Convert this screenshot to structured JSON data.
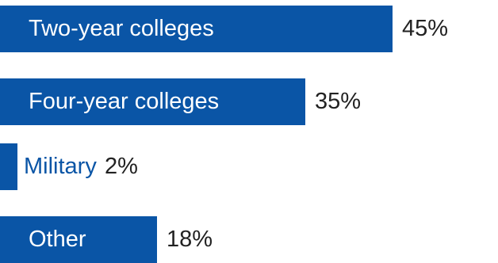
{
  "chart_data": {
    "type": "bar",
    "orientation": "horizontal",
    "categories": [
      "Two-year colleges",
      "Four-year colleges",
      "Military",
      "Other"
    ],
    "values": [
      45,
      35,
      2,
      18
    ],
    "value_labels": [
      "45%",
      "35%",
      "2%",
      "18%"
    ],
    "unit": "%",
    "title": "",
    "xlabel": "",
    "ylabel": "",
    "xlim": [
      0,
      100
    ],
    "grid": false,
    "legend": "none"
  },
  "colors": {
    "bar": "#0a55a6",
    "inside_label": "#ffffff",
    "outside_label": "#0a55a6",
    "value_label": "#222222"
  }
}
